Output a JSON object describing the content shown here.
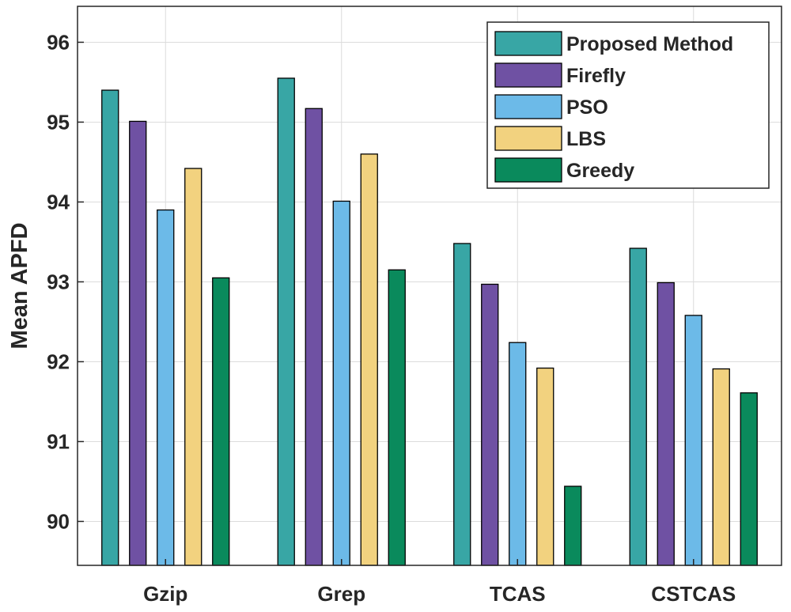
{
  "chart_data": {
    "type": "bar",
    "title": "",
    "xlabel": "",
    "ylabel": "Mean APFD",
    "ylim": [
      89.45,
      96.45
    ],
    "yticks": [
      90,
      91,
      92,
      93,
      94,
      95,
      96
    ],
    "grid": true,
    "legend_position": "top-right",
    "categories": [
      "Gzip",
      "Grep",
      "TCAS",
      "CSTCAS"
    ],
    "series": [
      {
        "name": "Proposed Method",
        "color": "#38a6a5",
        "values": [
          95.4,
          95.55,
          93.48,
          93.42
        ]
      },
      {
        "name": "Firefly",
        "color": "#6f51a3",
        "values": [
          95.01,
          95.17,
          92.97,
          92.99
        ]
      },
      {
        "name": "PSO",
        "color": "#6cbae8",
        "values": [
          93.9,
          94.01,
          92.24,
          92.58
        ]
      },
      {
        "name": "LBS",
        "color": "#f2d27f",
        "values": [
          94.42,
          94.6,
          91.92,
          91.91
        ]
      },
      {
        "name": "Greedy",
        "color": "#0a8a5c",
        "values": [
          93.05,
          93.15,
          90.44,
          91.61
        ]
      }
    ]
  }
}
